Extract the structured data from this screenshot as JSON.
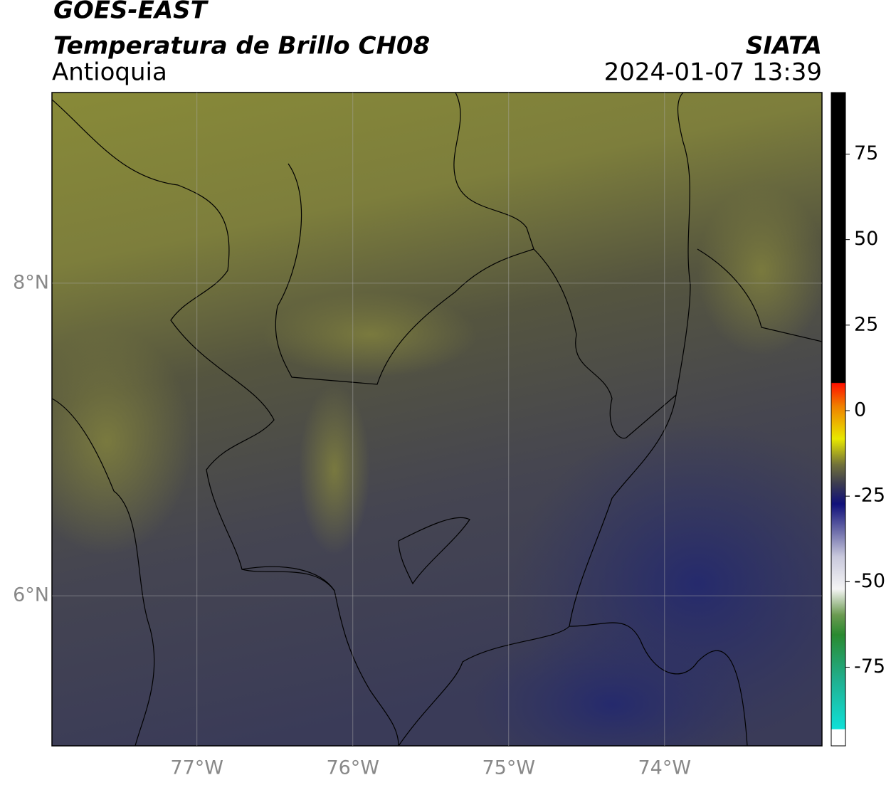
{
  "header": {
    "title": "GOES-EAST",
    "subtitle": "Temperatura de Brillo CH08",
    "region": "Antioquia",
    "source": "SIATA",
    "timestamp": "2024-01-07 13:39"
  },
  "map": {
    "xlim": [
      -77.93,
      -72.99
    ],
    "ylim": [
      5.04,
      9.22
    ],
    "xticks": [
      {
        "value": -77,
        "label": "77°W"
      },
      {
        "value": -76,
        "label": "76°W"
      },
      {
        "value": -75,
        "label": "75°W"
      },
      {
        "value": -74,
        "label": "74°W"
      }
    ],
    "yticks": [
      {
        "value": 6,
        "label": "6°N"
      },
      {
        "value": 8,
        "label": "8°N"
      }
    ],
    "grid": true
  },
  "colorbar": {
    "lim": [
      -98,
      93
    ],
    "ticks": [
      75,
      50,
      25,
      0,
      -25,
      -50,
      -75
    ]
  }
}
